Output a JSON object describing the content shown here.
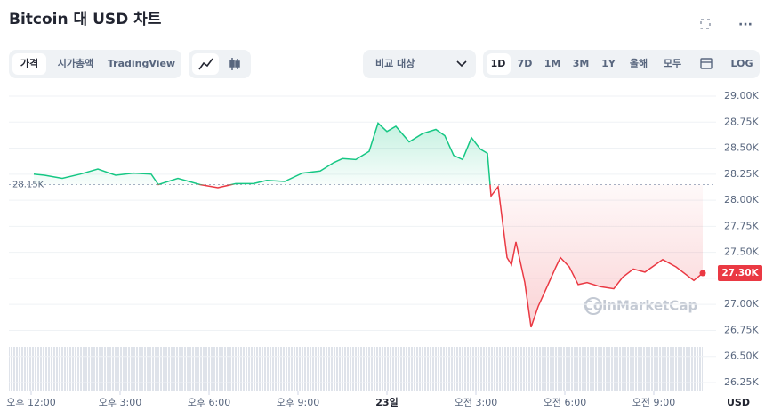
{
  "ui": {
    "title": "Bitcoin 대 USD 차트",
    "tabs": [
      "가격",
      "시가총액",
      "TradingView"
    ],
    "compare": "비교 대상",
    "ranges": [
      "1D",
      "7D",
      "1M",
      "3M",
      "1Y",
      "올해",
      "모두"
    ],
    "log": "LOG",
    "unit": "USD",
    "watermark": "CoinMarketCap"
  },
  "chart_data": {
    "type": "line",
    "x": [
      0.09,
      0.45,
      1.05,
      1.65,
      2.25,
      2.85,
      3.45,
      4.05,
      4.29,
      4.95,
      5.7,
      6.3,
      6.9,
      7.5,
      7.95,
      8.55,
      9.15,
      9.75,
      10.2,
      10.5,
      10.95,
      11.4,
      11.7,
      12.0,
      12.3,
      12.75,
      13.2,
      13.65,
      13.95,
      14.25,
      14.55,
      14.85,
      15.15,
      15.39,
      15.51,
      15.75,
      16.05,
      16.2,
      16.35,
      16.65,
      16.86,
      17.1,
      17.4,
      17.7,
      17.85,
      18.15,
      18.45,
      18.75,
      19.2,
      19.65,
      19.95,
      20.31,
      20.7,
      21.3,
      21.75,
      22.35,
      22.65
    ],
    "series": [
      {
        "name": "Price",
        "values": [
          28250,
          28240,
          28210,
          28250,
          28300,
          28240,
          28260,
          28250,
          28150,
          28210,
          28150,
          28120,
          28160,
          28160,
          28190,
          28180,
          28260,
          28280,
          28360,
          28400,
          28390,
          28470,
          28740,
          28660,
          28710,
          28560,
          28640,
          28680,
          28620,
          28430,
          28390,
          28600,
          28490,
          28450,
          28040,
          28130,
          27450,
          27380,
          27600,
          27210,
          26780,
          26980,
          27170,
          27360,
          27450,
          27360,
          27190,
          27210,
          27170,
          27150,
          27260,
          27340,
          27310,
          27430,
          27360,
          27230,
          27300
        ]
      }
    ],
    "up_color": "#16c784",
    "down_color": "#ea3943",
    "reference": {
      "value": 28150,
      "label": "28.15K"
    },
    "current": {
      "value": 27300,
      "label": "27.30K"
    },
    "xlim": [
      -0.75,
      23.1
    ],
    "xticks": [
      {
        "value": 0,
        "label": "오후 12:00"
      },
      {
        "value": 3,
        "label": "오후 3:00"
      },
      {
        "value": 6,
        "label": "오후 6:00"
      },
      {
        "value": 9,
        "label": "오후 9:00"
      },
      {
        "value": 12,
        "label": "23일"
      },
      {
        "value": 15,
        "label": "오전 3:00"
      },
      {
        "value": 18,
        "label": "오전 6:00"
      },
      {
        "value": 21,
        "label": "오전 9:00"
      }
    ],
    "ylim": [
      26250,
      29000
    ],
    "yticks": [
      {
        "value": 29000,
        "label": "29.00K"
      },
      {
        "value": 28750,
        "label": "28.75K"
      },
      {
        "value": 28500,
        "label": "28.50K"
      },
      {
        "value": 28250,
        "label": "28.25K"
      },
      {
        "value": 28000,
        "label": "28.00K"
      },
      {
        "value": 27750,
        "label": "27.75K"
      },
      {
        "value": 27500,
        "label": "27.50K"
      },
      {
        "value": 27250,
        "label": "27.25K"
      },
      {
        "value": 27000,
        "label": "27.00K"
      },
      {
        "value": 26750,
        "label": "26.75K"
      },
      {
        "value": 26500,
        "label": "26.50K"
      },
      {
        "value": 26250,
        "label": "26.25K"
      }
    ],
    "grid": true
  }
}
